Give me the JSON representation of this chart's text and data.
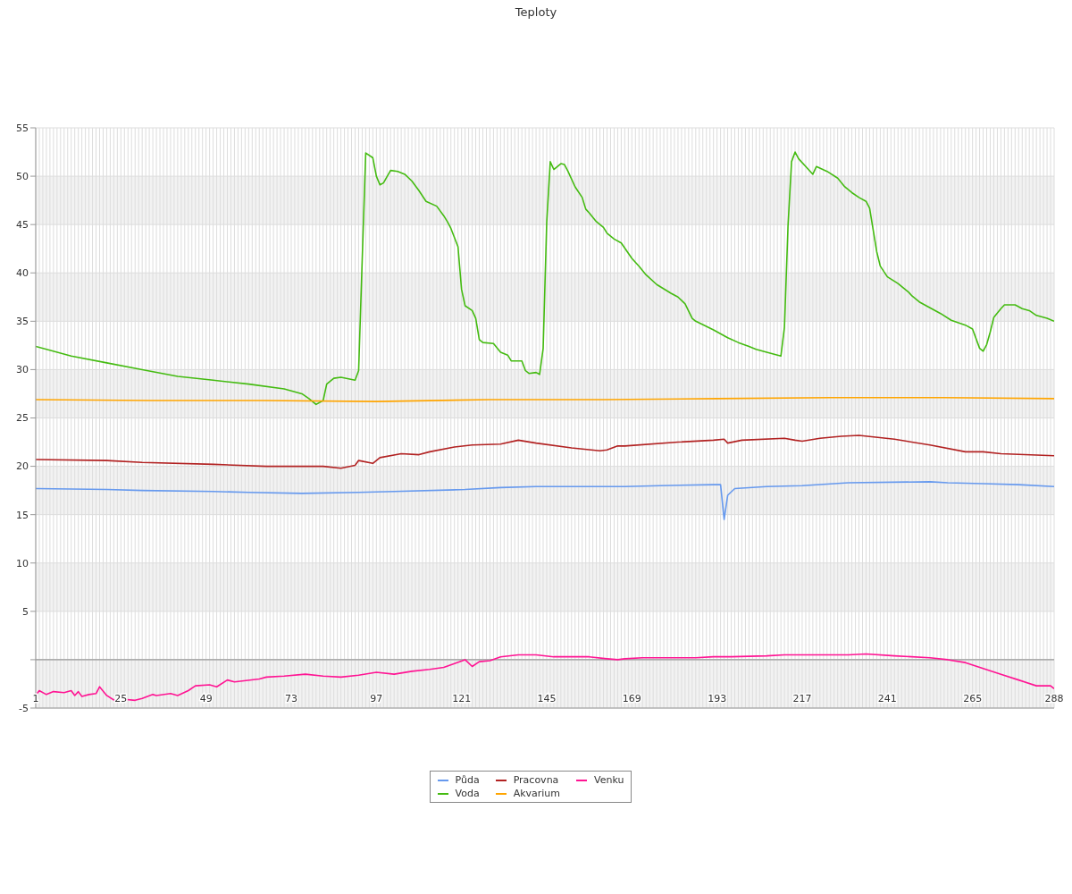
{
  "chart_data": {
    "type": "line",
    "title": "Teploty",
    "legend": "bottom",
    "grid": true,
    "marker": "none",
    "xlim": [
      1,
      288
    ],
    "xticks": [
      1,
      {
        "value": 2,
        "label": null
      },
      {
        "value": 3,
        "label": null
      },
      {
        "value": 4,
        "label": null
      },
      {
        "value": 5,
        "label": null
      },
      {
        "value": 6,
        "label": null
      },
      {
        "value": 7,
        "label": null
      },
      {
        "value": 8,
        "label": null
      },
      {
        "value": 9,
        "label": null
      },
      {
        "value": 10,
        "label": null
      },
      {
        "value": 11,
        "label": null
      },
      {
        "value": 12,
        "label": null
      },
      {
        "value": 13,
        "label": null
      },
      {
        "value": 14,
        "label": null
      },
      {
        "value": 15,
        "label": null
      },
      {
        "value": 16,
        "label": null
      },
      {
        "value": 17,
        "label": null
      },
      {
        "value": 18,
        "label": null
      },
      {
        "value": 19,
        "label": null
      },
      {
        "value": 20,
        "label": null
      },
      {
        "value": 21,
        "label": null
      },
      {
        "value": 22,
        "label": null
      },
      {
        "value": 23,
        "label": null
      },
      {
        "value": 24,
        "label": null
      },
      25,
      {
        "value": 26,
        "label": null
      },
      {
        "value": 27,
        "label": null
      },
      {
        "value": 28,
        "label": null
      },
      {
        "value": 29,
        "label": null
      },
      {
        "value": 30,
        "label": null
      },
      {
        "value": 31,
        "label": null
      },
      {
        "value": 32,
        "label": null
      },
      {
        "value": 33,
        "label": null
      },
      {
        "value": 34,
        "label": null
      },
      {
        "value": 35,
        "label": null
      },
      {
        "value": 36,
        "label": null
      },
      {
        "value": 37,
        "label": null
      },
      {
        "value": 38,
        "label": null
      },
      {
        "value": 39,
        "label": null
      },
      {
        "value": 40,
        "label": null
      },
      {
        "value": 41,
        "label": null
      },
      {
        "value": 42,
        "label": null
      },
      {
        "value": 43,
        "label": null
      },
      {
        "value": 44,
        "label": null
      },
      {
        "value": 45,
        "label": null
      },
      {
        "value": 46,
        "label": null
      },
      {
        "value": 47,
        "label": null
      },
      {
        "value": 48,
        "label": null
      },
      49,
      {
        "value": 50,
        "label": null
      },
      {
        "value": 51,
        "label": null
      },
      {
        "value": 52,
        "label": null
      },
      {
        "value": 53,
        "label": null
      },
      {
        "value": 54,
        "label": null
      },
      {
        "value": 55,
        "label": null
      },
      {
        "value": 56,
        "label": null
      },
      {
        "value": 57,
        "label": null
      },
      {
        "value": 58,
        "label": null
      },
      {
        "value": 59,
        "label": null
      },
      {
        "value": 60,
        "label": null
      },
      {
        "value": 61,
        "label": null
      },
      {
        "value": 62,
        "label": null
      },
      {
        "value": 63,
        "label": null
      },
      {
        "value": 64,
        "label": null
      },
      {
        "value": 65,
        "label": null
      },
      {
        "value": 66,
        "label": null
      },
      {
        "value": 67,
        "label": null
      },
      {
        "value": 68,
        "label": null
      },
      {
        "value": 69,
        "label": null
      },
      {
        "value": 70,
        "label": null
      },
      {
        "value": 71,
        "label": null
      },
      {
        "value": 72,
        "label": null
      },
      73,
      {
        "value": 74,
        "label": null
      },
      {
        "value": 75,
        "label": null
      },
      {
        "value": 76,
        "label": null
      },
      {
        "value": 77,
        "label": null
      },
      {
        "value": 78,
        "label": null
      },
      {
        "value": 79,
        "label": null
      },
      {
        "value": 80,
        "label": null
      },
      {
        "value": 81,
        "label": null
      },
      {
        "value": 82,
        "label": null
      },
      {
        "value": 83,
        "label": null
      },
      {
        "value": 84,
        "label": null
      },
      {
        "value": 85,
        "label": null
      },
      {
        "value": 86,
        "label": null
      },
      {
        "value": 87,
        "label": null
      },
      {
        "value": 88,
        "label": null
      },
      {
        "value": 89,
        "label": null
      },
      {
        "value": 90,
        "label": null
      },
      {
        "value": 91,
        "label": null
      },
      {
        "value": 92,
        "label": null
      },
      {
        "value": 93,
        "label": null
      },
      {
        "value": 94,
        "label": null
      },
      {
        "value": 95,
        "label": null
      },
      {
        "value": 96,
        "label": null
      },
      97,
      {
        "value": 98,
        "label": null
      },
      {
        "value": 99,
        "label": null
      },
      {
        "value": 100,
        "label": null
      },
      {
        "value": 101,
        "label": null
      },
      {
        "value": 102,
        "label": null
      },
      {
        "value": 103,
        "label": null
      },
      {
        "value": 104,
        "label": null
      },
      {
        "value": 105,
        "label": null
      },
      {
        "value": 106,
        "label": null
      },
      {
        "value": 107,
        "label": null
      },
      {
        "value": 108,
        "label": null
      },
      {
        "value": 109,
        "label": null
      },
      {
        "value": 110,
        "label": null
      },
      {
        "value": 111,
        "label": null
      },
      {
        "value": 112,
        "label": null
      },
      {
        "value": 113,
        "label": null
      },
      {
        "value": 114,
        "label": null
      },
      {
        "value": 115,
        "label": null
      },
      {
        "value": 116,
        "label": null
      },
      {
        "value": 117,
        "label": null
      },
      {
        "value": 118,
        "label": null
      },
      {
        "value": 119,
        "label": null
      },
      {
        "value": 120,
        "label": null
      },
      121,
      {
        "value": 122,
        "label": null
      },
      {
        "value": 123,
        "label": null
      },
      {
        "value": 124,
        "label": null
      },
      {
        "value": 125,
        "label": null
      },
      {
        "value": 126,
        "label": null
      },
      {
        "value": 127,
        "label": null
      },
      {
        "value": 128,
        "label": null
      },
      {
        "value": 129,
        "label": null
      },
      {
        "value": 130,
        "label": null
      },
      {
        "value": 131,
        "label": null
      },
      {
        "value": 132,
        "label": null
      },
      {
        "value": 133,
        "label": null
      },
      {
        "value": 134,
        "label": null
      },
      {
        "value": 135,
        "label": null
      },
      {
        "value": 136,
        "label": null
      },
      {
        "value": 137,
        "label": null
      },
      {
        "value": 138,
        "label": null
      },
      {
        "value": 139,
        "label": null
      },
      {
        "value": 140,
        "label": null
      },
      {
        "value": 141,
        "label": null
      },
      {
        "value": 142,
        "label": null
      },
      {
        "value": 143,
        "label": null
      },
      {
        "value": 144,
        "label": null
      },
      145,
      {
        "value": 146,
        "label": null
      },
      {
        "value": 147,
        "label": null
      },
      {
        "value": 148,
        "label": null
      },
      {
        "value": 149,
        "label": null
      },
      {
        "value": 150,
        "label": null
      },
      {
        "value": 151,
        "label": null
      },
      {
        "value": 152,
        "label": null
      },
      {
        "value": 153,
        "label": null
      },
      {
        "value": 154,
        "label": null
      },
      {
        "value": 155,
        "label": null
      },
      {
        "value": 156,
        "label": null
      },
      {
        "value": 157,
        "label": null
      },
      {
        "value": 158,
        "label": null
      },
      {
        "value": 159,
        "label": null
      },
      {
        "value": 160,
        "label": null
      },
      {
        "value": 161,
        "label": null
      },
      {
        "value": 162,
        "label": null
      },
      {
        "value": 163,
        "label": null
      },
      {
        "value": 164,
        "label": null
      },
      {
        "value": 165,
        "label": null
      },
      {
        "value": 166,
        "label": null
      },
      {
        "value": 167,
        "label": null
      },
      {
        "value": 168,
        "label": null
      },
      169,
      {
        "value": 170,
        "label": null
      },
      {
        "value": 171,
        "label": null
      },
      {
        "value": 172,
        "label": null
      },
      {
        "value": 173,
        "label": null
      },
      {
        "value": 174,
        "label": null
      },
      {
        "value": 175,
        "label": null
      },
      {
        "value": 176,
        "label": null
      },
      {
        "value": 177,
        "label": null
      },
      {
        "value": 178,
        "label": null
      },
      {
        "value": 179,
        "label": null
      },
      {
        "value": 180,
        "label": null
      },
      {
        "value": 181,
        "label": null
      },
      {
        "value": 182,
        "label": null
      },
      {
        "value": 183,
        "label": null
      },
      {
        "value": 184,
        "label": null
      },
      {
        "value": 185,
        "label": null
      },
      {
        "value": 186,
        "label": null
      },
      {
        "value": 187,
        "label": null
      },
      {
        "value": 188,
        "label": null
      },
      {
        "value": 189,
        "label": null
      },
      {
        "value": 190,
        "label": null
      },
      {
        "value": 191,
        "label": null
      },
      {
        "value": 192,
        "label": null
      },
      193,
      {
        "value": 194,
        "label": null
      },
      {
        "value": 195,
        "label": null
      },
      {
        "value": 196,
        "label": null
      },
      {
        "value": 197,
        "label": null
      },
      {
        "value": 198,
        "label": null
      },
      {
        "value": 199,
        "label": null
      },
      {
        "value": 200,
        "label": null
      },
      {
        "value": 201,
        "label": null
      },
      {
        "value": 202,
        "label": null
      },
      {
        "value": 203,
        "label": null
      },
      {
        "value": 204,
        "label": null
      },
      {
        "value": 205,
        "label": null
      },
      {
        "value": 206,
        "label": null
      },
      {
        "value": 207,
        "label": null
      },
      {
        "value": 208,
        "label": null
      },
      {
        "value": 209,
        "label": null
      },
      {
        "value": 210,
        "label": null
      },
      {
        "value": 211,
        "label": null
      },
      {
        "value": 212,
        "label": null
      },
      {
        "value": 213,
        "label": null
      },
      {
        "value": 214,
        "label": null
      },
      {
        "value": 215,
        "label": null
      },
      {
        "value": 216,
        "label": null
      },
      217,
      {
        "value": 218,
        "label": null
      },
      {
        "value": 219,
        "label": null
      },
      {
        "value": 220,
        "label": null
      },
      {
        "value": 221,
        "label": null
      },
      {
        "value": 222,
        "label": null
      },
      {
        "value": 223,
        "label": null
      },
      {
        "value": 224,
        "label": null
      },
      {
        "value": 225,
        "label": null
      },
      {
        "value": 226,
        "label": null
      },
      {
        "value": 227,
        "label": null
      },
      {
        "value": 228,
        "label": null
      },
      {
        "value": 229,
        "label": null
      },
      {
        "value": 230,
        "label": null
      },
      {
        "value": 231,
        "label": null
      },
      {
        "value": 232,
        "label": null
      },
      {
        "value": 233,
        "label": null
      },
      {
        "value": 234,
        "label": null
      },
      {
        "value": 235,
        "label": null
      },
      {
        "value": 236,
        "label": null
      },
      {
        "value": 237,
        "label": null
      },
      {
        "value": 238,
        "label": null
      },
      {
        "value": 239,
        "label": null
      },
      {
        "value": 240,
        "label": null
      },
      241,
      {
        "value": 242,
        "label": null
      },
      {
        "value": 243,
        "label": null
      },
      {
        "value": 244,
        "label": null
      },
      {
        "value": 245,
        "label": null
      },
      {
        "value": 246,
        "label": null
      },
      {
        "value": 247,
        "label": null
      },
      {
        "value": 248,
        "label": null
      },
      {
        "value": 249,
        "label": null
      },
      {
        "value": 250,
        "label": null
      },
      {
        "value": 251,
        "label": null
      },
      {
        "value": 252,
        "label": null
      },
      {
        "value": 253,
        "label": null
      },
      {
        "value": 254,
        "label": null
      },
      {
        "value": 255,
        "label": null
      },
      {
        "value": 256,
        "label": null
      },
      {
        "value": 257,
        "label": null
      },
      {
        "value": 258,
        "label": null
      },
      {
        "value": 259,
        "label": null
      },
      {
        "value": 260,
        "label": null
      },
      {
        "value": 261,
        "label": null
      },
      {
        "value": 262,
        "label": null
      },
      {
        "value": 263,
        "label": null
      },
      {
        "value": 264,
        "label": null
      },
      265,
      {
        "value": 266,
        "label": null
      },
      {
        "value": 267,
        "label": null
      },
      {
        "value": 268,
        "label": null
      },
      {
        "value": 269,
        "label": null
      },
      {
        "value": 270,
        "label": null
      },
      {
        "value": 271,
        "label": null
      },
      {
        "value": 272,
        "label": null
      },
      {
        "value": 273,
        "label": null
      },
      {
        "value": 274,
        "label": null
      },
      {
        "value": 275,
        "label": null
      },
      {
        "value": 276,
        "label": null
      },
      {
        "value": 277,
        "label": null
      },
      {
        "value": 278,
        "label": null
      },
      {
        "value": 279,
        "label": null
      },
      {
        "value": 280,
        "label": null
      },
      {
        "value": 281,
        "label": null
      },
      {
        "value": 282,
        "label": null
      },
      {
        "value": 283,
        "label": null
      },
      {
        "value": 284,
        "label": null
      },
      {
        "value": 285,
        "label": null
      },
      {
        "value": 286,
        "label": null
      },
      {
        "value": 287,
        "label": null
      },
      288
    ],
    "ylim": [
      -5,
      55
    ],
    "yticks": [
      -5,
      {
        "value": 0,
        "label": null
      },
      5,
      10,
      15,
      20,
      25,
      30,
      35,
      40,
      45,
      50,
      55
    ],
    "ref_lines": [
      {
        "axis": "y",
        "value": 0,
        "color": "#999999"
      }
    ],
    "series": [
      {
        "name": "Půda",
        "color": "#6699ee",
        "x": [
          1,
          21,
          31,
          51,
          61,
          76,
          92,
          102,
          122,
          132,
          142,
          167,
          177,
          192,
          194,
          195,
          196,
          198,
          207,
          217,
          230,
          253,
          258,
          268,
          278,
          288
        ],
        "values": [
          17.7,
          17.6,
          17.5,
          17.4,
          17.3,
          17.2,
          17.3,
          17.4,
          17.6,
          17.8,
          17.9,
          17.9,
          18.0,
          18.1,
          18.1,
          14.5,
          17.0,
          17.7,
          17.9,
          18.0,
          18.3,
          18.4,
          18.3,
          18.2,
          18.1,
          17.9
        ]
      },
      {
        "name": "Voda",
        "color": "#44bb11",
        "x": [
          1,
          11,
          21,
          31,
          41,
          51,
          61,
          71,
          76,
          78,
          80,
          82,
          83,
          85,
          87,
          91,
          92,
          93,
          94,
          96,
          97,
          98,
          99,
          101,
          103,
          105,
          107,
          109,
          111,
          114,
          116,
          117,
          118,
          120,
          121,
          122,
          124,
          125,
          126,
          127,
          130,
          132,
          134,
          135,
          138,
          139,
          140,
          142,
          143,
          144,
          145,
          146,
          147,
          149,
          150,
          151,
          153,
          155,
          156,
          157,
          159,
          161,
          162,
          164,
          166,
          169,
          171,
          173,
          176,
          180,
          182,
          184,
          186,
          187,
          192,
          196,
          199,
          202,
          204,
          207,
          211,
          212,
          213,
          214,
          215,
          216,
          218,
          220,
          221,
          224,
          227,
          229,
          231,
          233,
          235,
          236,
          238,
          239,
          241,
          244,
          247,
          248,
          250,
          253,
          256,
          259,
          263,
          265,
          267,
          268,
          269,
          270,
          271,
          273,
          274,
          277,
          279,
          281,
          283,
          286,
          288
        ],
        "values": [
          32.4,
          31.4,
          30.7,
          30.0,
          29.3,
          28.9,
          28.5,
          28.0,
          27.5,
          27.0,
          26.4,
          26.8,
          28.5,
          29.1,
          29.2,
          28.9,
          29.9,
          41.3,
          52.4,
          51.9,
          50.0,
          49.1,
          49.3,
          50.6,
          50.5,
          50.2,
          49.5,
          48.5,
          47.4,
          46.9,
          45.9,
          45.3,
          44.6,
          42.7,
          38.3,
          36.6,
          36.1,
          35.3,
          33.1,
          32.8,
          32.7,
          31.8,
          31.5,
          30.9,
          30.9,
          29.9,
          29.6,
          29.7,
          29.5,
          32.2,
          45.2,
          51.5,
          50.7,
          51.3,
          51.2,
          50.5,
          48.9,
          47.8,
          46.6,
          46.2,
          45.3,
          44.7,
          44.1,
          43.5,
          43.1,
          41.5,
          40.7,
          39.8,
          38.8,
          37.9,
          37.5,
          36.8,
          35.3,
          35.0,
          34.1,
          33.3,
          32.8,
          32.4,
          32.1,
          31.8,
          31.4,
          34.4,
          44.8,
          51.5,
          52.5,
          51.8,
          51.0,
          50.2,
          51.0,
          50.5,
          49.8,
          48.9,
          48.3,
          47.8,
          47.4,
          46.7,
          42.2,
          40.7,
          39.6,
          38.9,
          38.0,
          37.6,
          37.0,
          36.4,
          35.8,
          35.1,
          34.6,
          34.2,
          32.2,
          31.9,
          32.6,
          33.9,
          35.4,
          36.3,
          36.7,
          36.7,
          36.3,
          36.1,
          35.6,
          35.3,
          35.0
        ]
      },
      {
        "name": "Pracovna",
        "color": "#b22222",
        "x": [
          1,
          21,
          31,
          51,
          66,
          82,
          87,
          91,
          92,
          96,
          98,
          104,
          109,
          112,
          119,
          124,
          132,
          137,
          142,
          152,
          160,
          162,
          165,
          167,
          182,
          192,
          195,
          196,
          200,
          212,
          215,
          217,
          222,
          228,
          233,
          243,
          253,
          263,
          268,
          273,
          288
        ],
        "values": [
          20.7,
          20.6,
          20.4,
          20.2,
          20.0,
          20.0,
          19.8,
          20.1,
          20.6,
          20.3,
          20.9,
          21.3,
          21.2,
          21.5,
          22.0,
          22.2,
          22.3,
          22.7,
          22.4,
          21.9,
          21.6,
          21.7,
          22.1,
          22.1,
          22.5,
          22.7,
          22.8,
          22.4,
          22.7,
          22.9,
          22.7,
          22.6,
          22.9,
          23.1,
          23.2,
          22.8,
          22.2,
          21.5,
          21.5,
          21.3,
          21.1
        ]
      },
      {
        "name": "Akvarium",
        "color": "#ffa500",
        "x": [
          1,
          33,
          65,
          97,
          129,
          161,
          193,
          225,
          257,
          288
        ],
        "values": [
          26.9,
          26.8,
          26.8,
          26.7,
          26.9,
          26.9,
          27.0,
          27.1,
          27.1,
          27.0
        ]
      },
      {
        "name": "Venku",
        "color": "#ff1493",
        "x": [
          1,
          2,
          4,
          6,
          9,
          11,
          12,
          13,
          14,
          16,
          18,
          19,
          21,
          24,
          26,
          29,
          31,
          34,
          35,
          39,
          41,
          44,
          46,
          50,
          52,
          55,
          57,
          64,
          66,
          71,
          77,
          82,
          87,
          92,
          97,
          102,
          107,
          112,
          116,
          119,
          122,
          124,
          126,
          129,
          132,
          137,
          142,
          147,
          152,
          157,
          162,
          165,
          167,
          172,
          177,
          187,
          192,
          197,
          207,
          212,
          217,
          230,
          235,
          243,
          253,
          258,
          263,
          268,
          273,
          278,
          283,
          287,
          288
        ],
        "values": [
          -3.7,
          -3.2,
          -3.6,
          -3.3,
          -3.4,
          -3.2,
          -3.7,
          -3.3,
          -3.8,
          -3.6,
          -3.5,
          -2.8,
          -3.7,
          -4.4,
          -4.1,
          -4.2,
          -4.0,
          -3.6,
          -3.7,
          -3.5,
          -3.7,
          -3.2,
          -2.7,
          -2.6,
          -2.8,
          -2.1,
          -2.3,
          -2.0,
          -1.8,
          -1.7,
          -1.5,
          -1.7,
          -1.8,
          -1.6,
          -1.3,
          -1.5,
          -1.2,
          -1.0,
          -0.8,
          -0.4,
          0.0,
          -0.7,
          -0.2,
          -0.1,
          0.3,
          0.5,
          0.5,
          0.3,
          0.3,
          0.3,
          0.1,
          0.0,
          0.1,
          0.2,
          0.2,
          0.2,
          0.3,
          0.3,
          0.4,
          0.5,
          0.5,
          0.5,
          0.6,
          0.4,
          0.2,
          0.0,
          -0.3,
          -0.9,
          -1.5,
          -2.1,
          -2.7,
          -2.7,
          -3.0
        ]
      }
    ]
  }
}
